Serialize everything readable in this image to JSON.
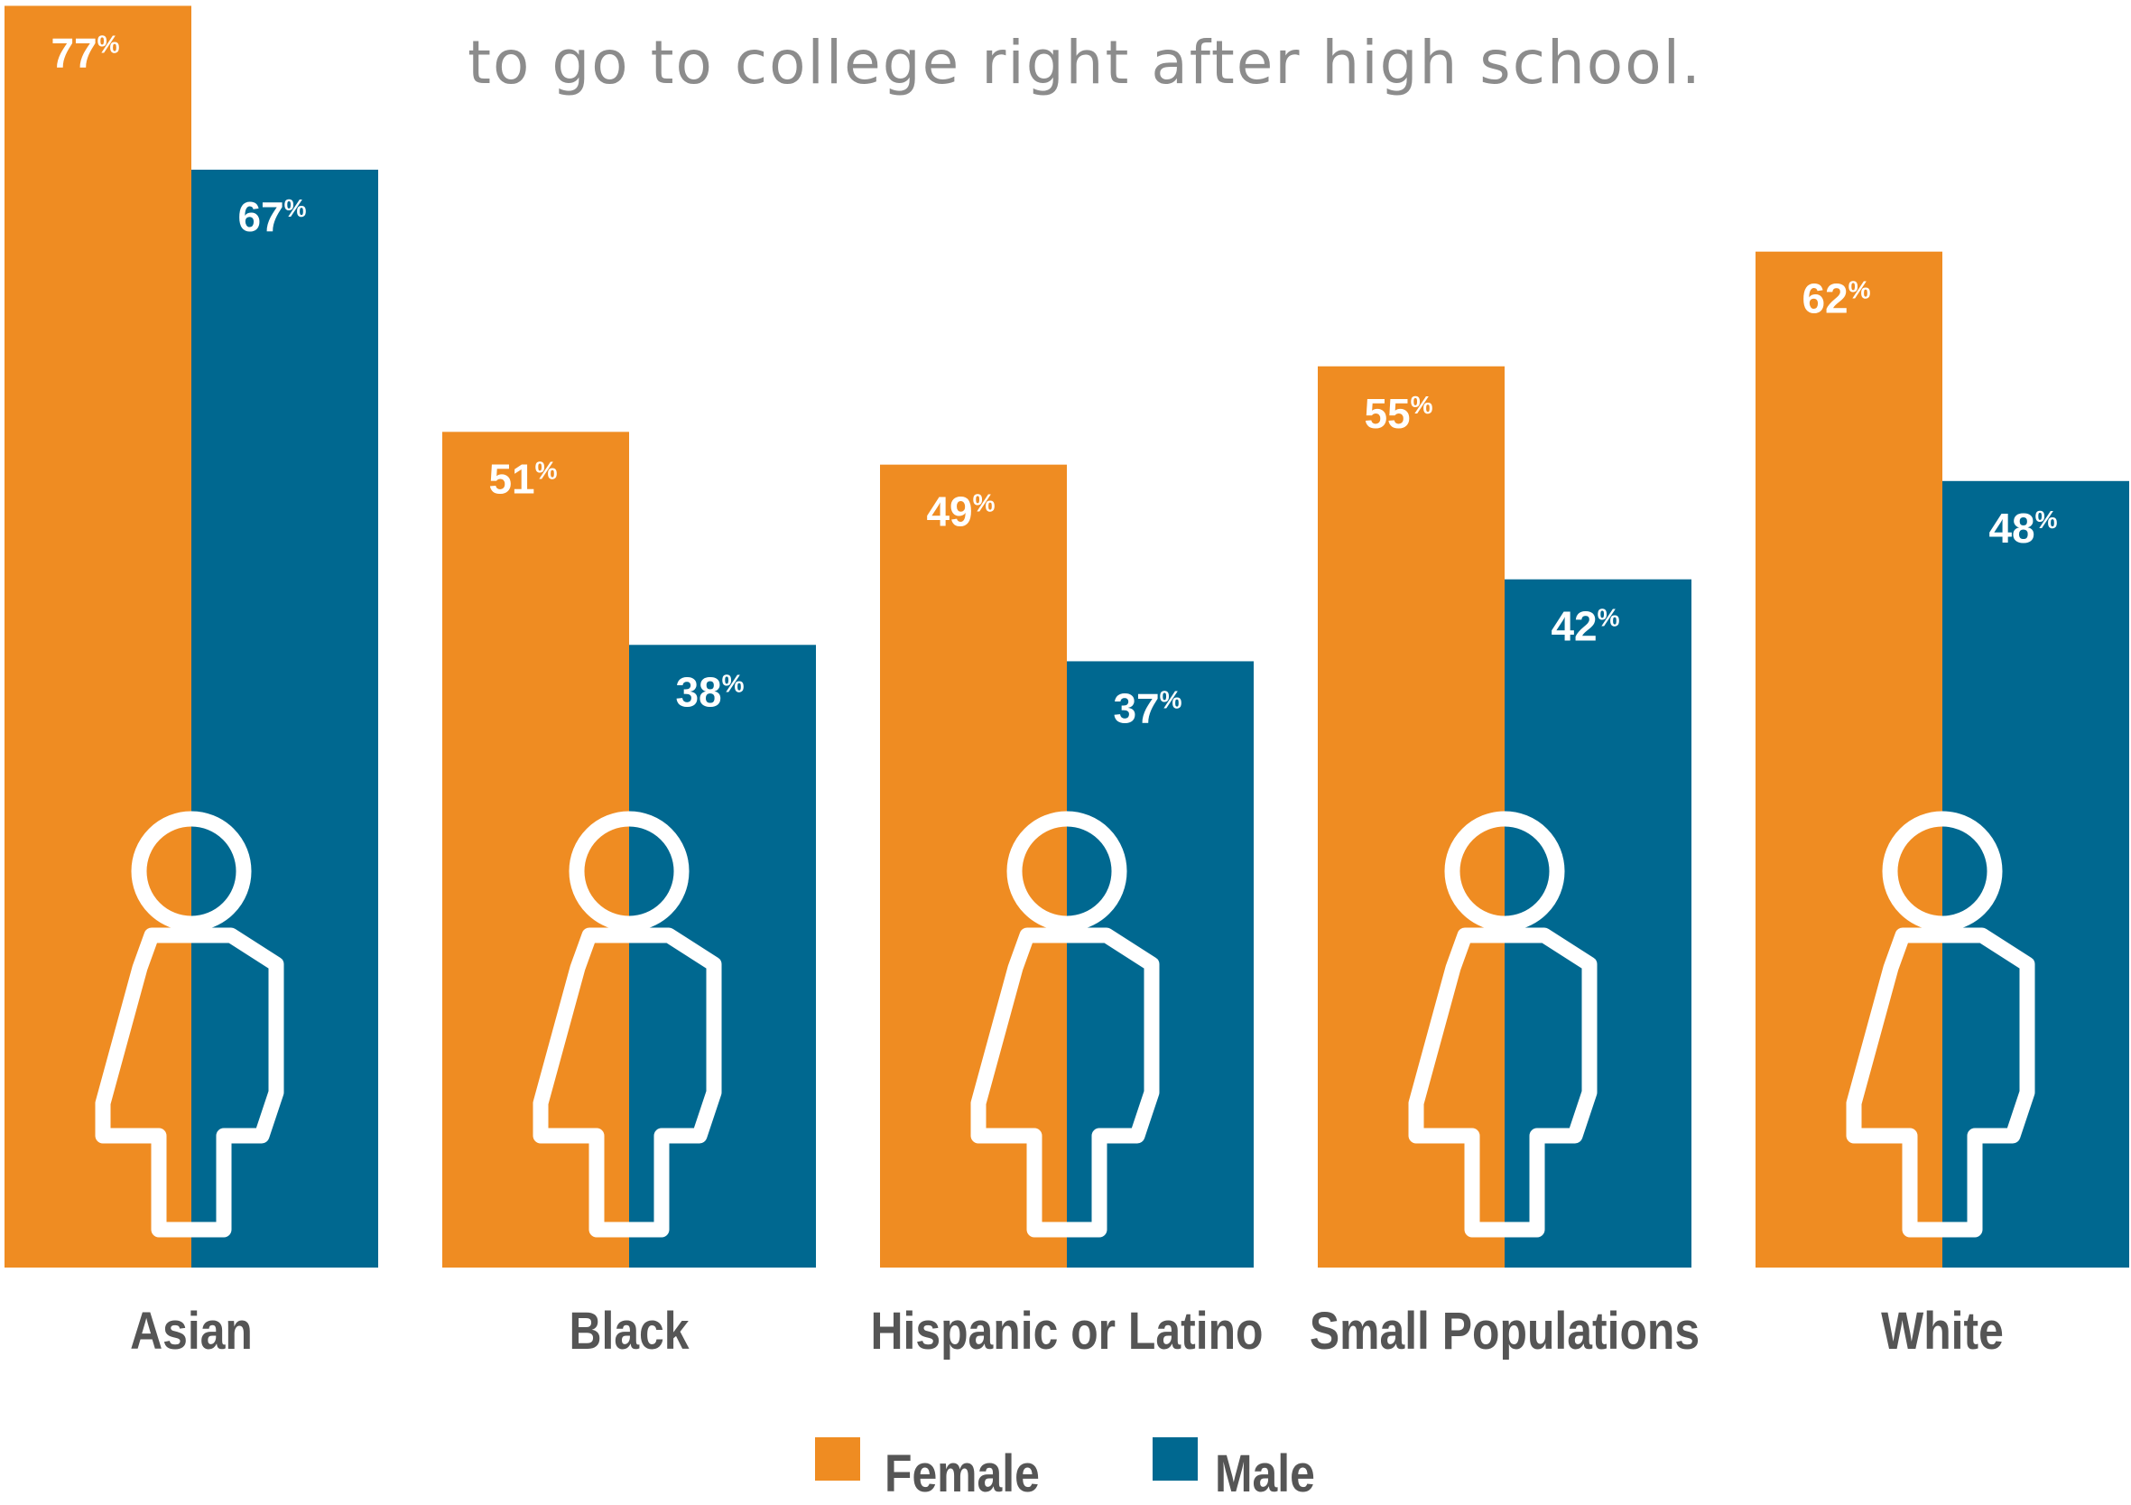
{
  "subtitle": "to go to college right after high school.",
  "colors": {
    "female": "#EF8C22",
    "male": "#006890",
    "text_dark": "#555555",
    "subtitle": "#8C8C8C",
    "icon": "#ffffff"
  },
  "chart_data": {
    "type": "bar",
    "categories": [
      "Asian",
      "Black",
      "Hispanic or Latino",
      "Small Populations",
      "White"
    ],
    "series": [
      {
        "name": "Female",
        "values": [
          77,
          51,
          49,
          55,
          62
        ]
      },
      {
        "name": "Male",
        "values": [
          67,
          38,
          37,
          42,
          48
        ]
      }
    ],
    "value_suffix": "%",
    "ylim": [
      0,
      80
    ],
    "grid": false,
    "legend": "bottom-center",
    "xlabel": "",
    "ylabel": ""
  }
}
